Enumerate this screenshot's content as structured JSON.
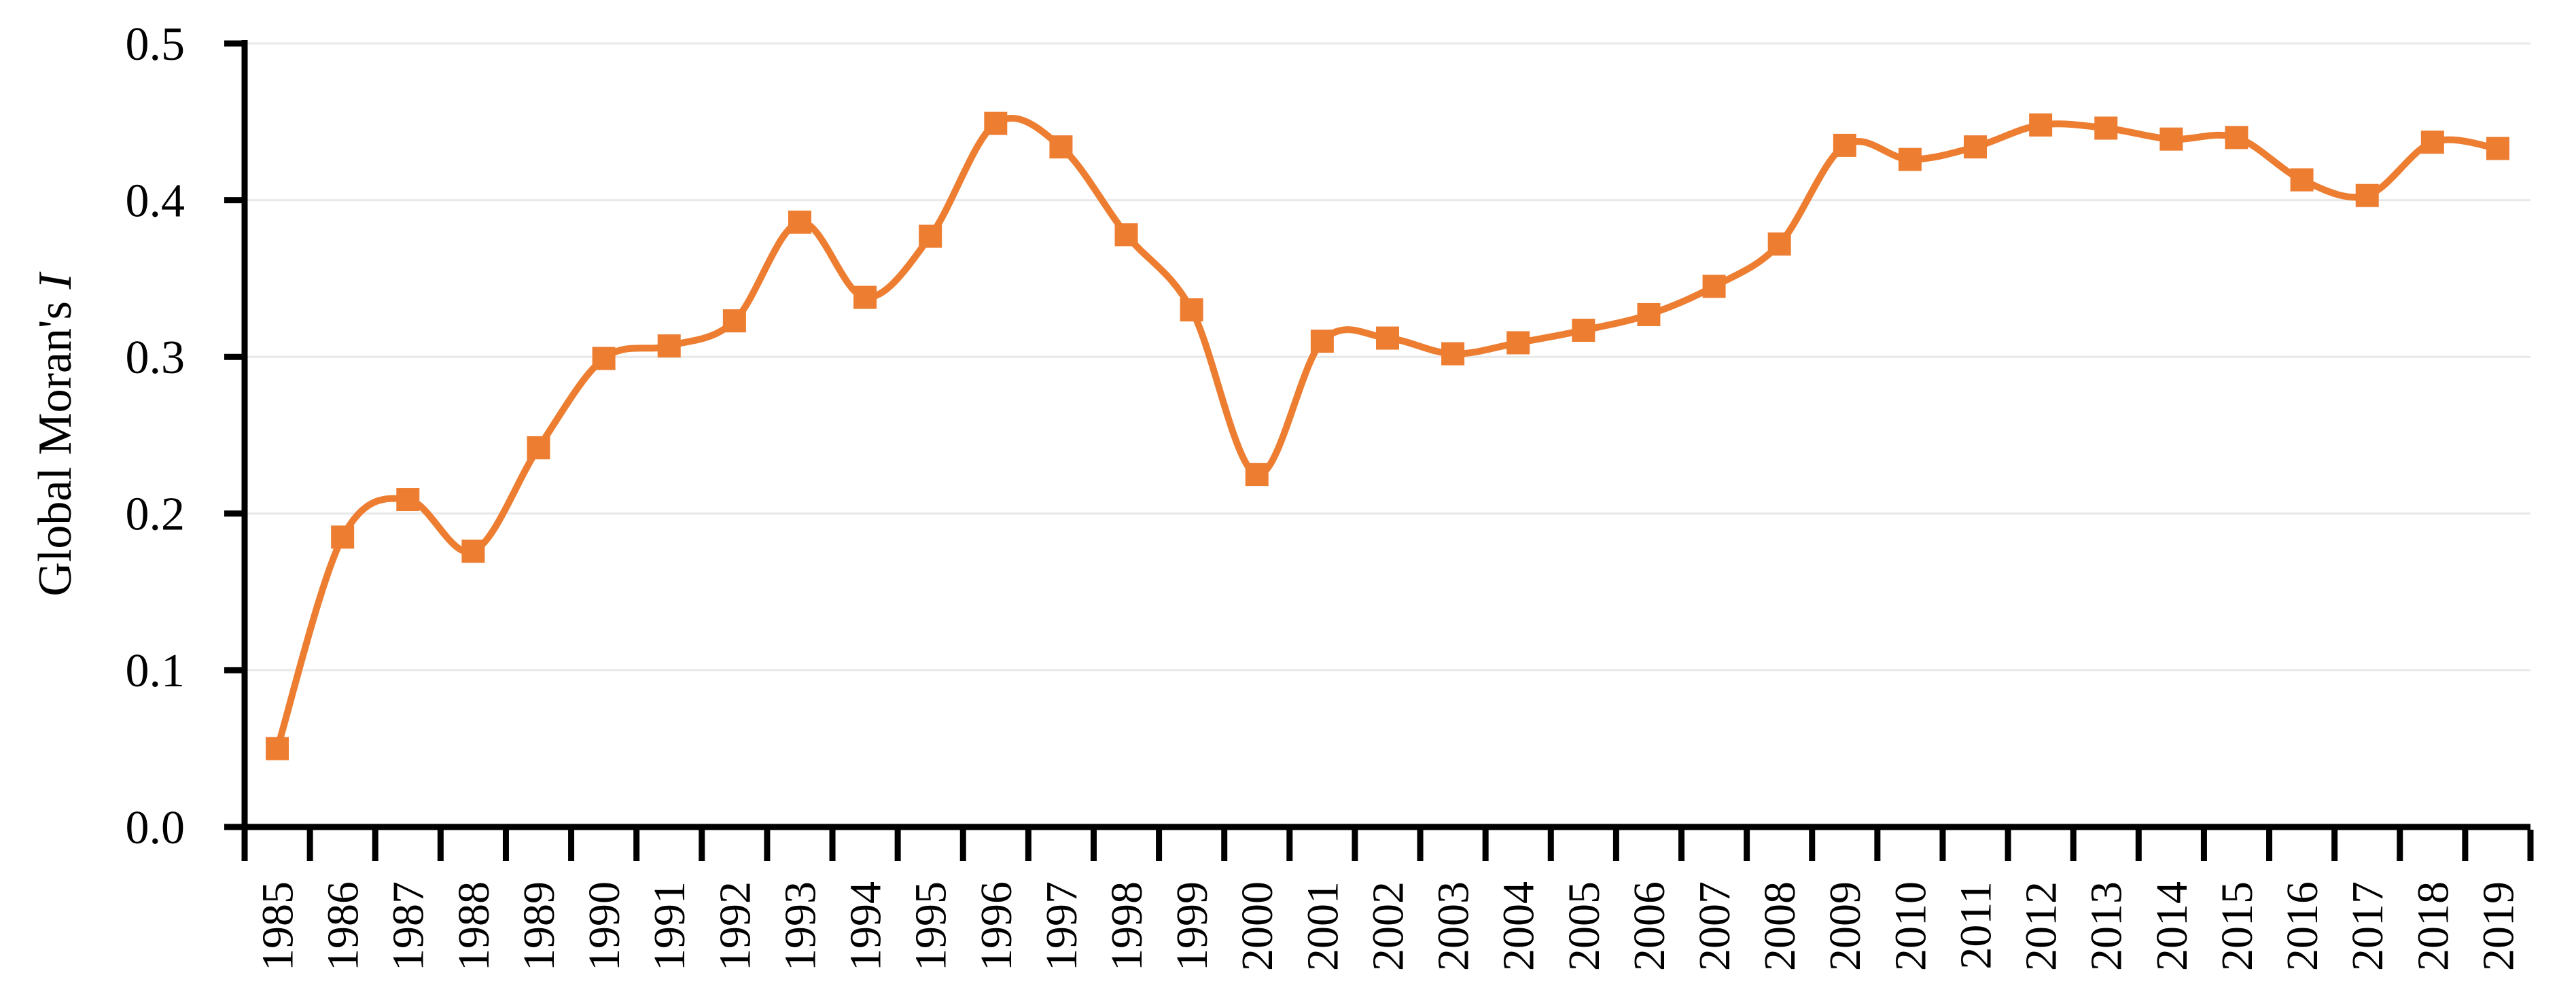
{
  "chart_data": {
    "type": "line",
    "title": "",
    "ylabel_regular": "Global Moran's ",
    "ylabel_italic": "I",
    "xlabel": "",
    "categories": [
      "1985",
      "1986",
      "1987",
      "1988",
      "1989",
      "1990",
      "1991",
      "1992",
      "1993",
      "1994",
      "1995",
      "1996",
      "1997",
      "1998",
      "1999",
      "2000",
      "2001",
      "2002",
      "2003",
      "2004",
      "2005",
      "2006",
      "2007",
      "2008",
      "2009",
      "2010",
      "2011",
      "2012",
      "2013",
      "2014",
      "2015",
      "2016",
      "2017",
      "2018",
      "2019"
    ],
    "series": [
      {
        "name": "Global Moran's I",
        "values": [
          0.05,
          0.185,
          0.209,
          0.176,
          0.242,
          0.299,
          0.307,
          0.323,
          0.386,
          0.338,
          0.377,
          0.449,
          0.434,
          0.378,
          0.33,
          0.225,
          0.31,
          0.312,
          0.302,
          0.309,
          0.317,
          0.327,
          0.345,
          0.372,
          0.435,
          0.426,
          0.434,
          0.448,
          0.446,
          0.439,
          0.44,
          0.413,
          0.403,
          0.437,
          0.433
        ]
      }
    ],
    "ylim": [
      0.0,
      0.5
    ],
    "yticks": [
      0.0,
      0.1,
      0.2,
      0.3,
      0.4,
      0.5
    ],
    "ytick_labels": [
      "0.0",
      "0.1",
      "0.2",
      "0.3",
      "0.4",
      "0.5"
    ],
    "grid": "horizontal",
    "legend": "none",
    "smooth": true,
    "marker": "square",
    "line_color": "#ED7D31",
    "gridline_color": "#E8E8E8",
    "axis_color": "#000000",
    "background": "#FFFFFF"
  }
}
